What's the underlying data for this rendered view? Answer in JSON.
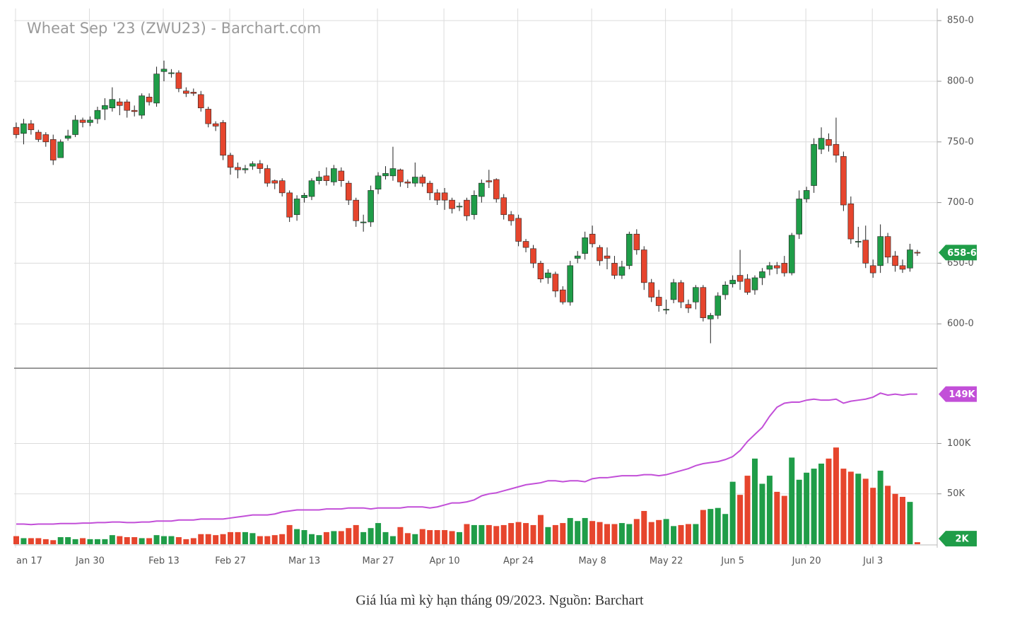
{
  "chart_data": [
    {
      "type": "candlestick",
      "title": "Wheat Sep '23 (ZWU23) - Barchart.com",
      "up_color": "#1f9d48",
      "down_color": "#e6452d",
      "open": [
        762,
        757,
        765,
        758,
        756,
        752,
        737,
        753,
        756,
        768,
        766,
        769,
        777,
        778,
        783,
        783,
        776,
        772,
        787,
        782,
        808,
        807,
        807,
        792,
        791,
        789,
        777,
        765,
        766,
        739,
        729,
        727,
        730,
        732,
        728,
        718,
        718,
        708,
        690,
        704,
        705,
        718,
        722,
        717,
        726,
        716,
        702,
        684,
        684,
        711,
        722,
        722,
        727,
        717,
        716,
        721,
        716,
        708,
        708,
        702,
        697,
        702,
        690,
        705,
        718,
        719,
        704,
        690,
        687,
        668,
        662,
        650,
        638,
        641,
        628,
        618,
        654,
        658,
        674,
        663,
        656,
        650,
        640,
        648,
        674,
        661,
        634,
        622,
        612,
        620,
        634,
        616,
        618,
        630,
        604,
        607,
        624,
        633,
        640,
        637,
        628,
        638,
        645,
        648,
        650,
        642,
        674,
        703,
        714,
        744,
        752,
        748,
        738,
        699,
        668,
        669,
        648,
        648,
        672,
        656,
        648,
        646,
        659
      ],
      "high": [
        766,
        769,
        768,
        760,
        758,
        756,
        752,
        760,
        772,
        770,
        771,
        779,
        786,
        795,
        786,
        785,
        780,
        790,
        790,
        812,
        817,
        810,
        809,
        795,
        794,
        792,
        779,
        767,
        768,
        741,
        733,
        731,
        734,
        735,
        731,
        719,
        720,
        710,
        706,
        708,
        720,
        726,
        729,
        731,
        729,
        718,
        704,
        690,
        714,
        725,
        730,
        746,
        728,
        719,
        733,
        723,
        718,
        711,
        712,
        704,
        700,
        704,
        710,
        719,
        727,
        720,
        707,
        693,
        690,
        670,
        665,
        652,
        645,
        643,
        631,
        652,
        660,
        676,
        681,
        665,
        663,
        656,
        652,
        676,
        678,
        664,
        637,
        628,
        620,
        637,
        636,
        620,
        632,
        632,
        609,
        626,
        635,
        640,
        661,
        641,
        640,
        646,
        651,
        651,
        656,
        675,
        710,
        713,
        753,
        762,
        757,
        770,
        742,
        705,
        680,
        681,
        653,
        682,
        675,
        660,
        653,
        666,
        661
      ],
      "low": [
        753,
        748,
        756,
        750,
        746,
        731,
        738,
        751,
        754,
        762,
        763,
        765,
        768,
        775,
        772,
        770,
        771,
        769,
        780,
        779,
        800,
        803,
        791,
        787,
        788,
        775,
        762,
        759,
        735,
        723,
        720,
        724,
        727,
        724,
        713,
        711,
        705,
        684,
        685,
        700,
        702,
        715,
        714,
        714,
        713,
        698,
        680,
        676,
        680,
        707,
        719,
        718,
        713,
        712,
        713,
        713,
        702,
        698,
        694,
        691,
        693,
        685,
        686,
        700,
        712,
        700,
        686,
        681,
        664,
        659,
        646,
        634,
        633,
        622,
        616,
        615,
        650,
        653,
        663,
        648,
        645,
        637,
        637,
        645,
        657,
        628,
        618,
        610,
        608,
        617,
        613,
        609,
        612,
        602,
        584,
        604,
        620,
        630,
        628,
        624,
        624,
        632,
        640,
        641,
        639,
        640,
        670,
        700,
        708,
        740,
        742,
        733,
        693,
        666,
        663,
        646,
        638,
        642,
        650,
        643,
        642,
        643,
        656
      ],
      "close": [
        756,
        765,
        760,
        752,
        750,
        735,
        750,
        755,
        768,
        766,
        768,
        776,
        780,
        785,
        780,
        776,
        775,
        788,
        783,
        806,
        810,
        807,
        794,
        790,
        790,
        778,
        765,
        763,
        739,
        729,
        727,
        728,
        732,
        728,
        716,
        716,
        708,
        688,
        703,
        706,
        718,
        721,
        718,
        728,
        718,
        702,
        685,
        684,
        710,
        722,
        724,
        728,
        717,
        716,
        721,
        716,
        708,
        702,
        702,
        695,
        697,
        689,
        706,
        716,
        717,
        703,
        690,
        685,
        668,
        663,
        650,
        637,
        642,
        627,
        618,
        648,
        656,
        671,
        666,
        652,
        654,
        640,
        647,
        674,
        661,
        634,
        622,
        615,
        612,
        634,
        618,
        613,
        630,
        605,
        607,
        623,
        632,
        636,
        635,
        626,
        638,
        643,
        648,
        646,
        642,
        673,
        703,
        710,
        748,
        753,
        747,
        739,
        698,
        670,
        668,
        650,
        642,
        672,
        655,
        648,
        645,
        661,
        658.75
      ],
      "ylim": [
        564,
        860
      ],
      "yticks": [
        {
          "value": 600,
          "label": "600-0"
        },
        {
          "value": 650,
          "label": "650-0"
        },
        {
          "value": 700,
          "label": "700-0"
        },
        {
          "value": 750,
          "label": "750-0"
        },
        {
          "value": 800,
          "label": "800-0"
        },
        {
          "value": 850,
          "label": "850-0"
        }
      ],
      "last": {
        "value": 658.75,
        "label": "658-6",
        "color": "#1f9d48"
      },
      "grid": true
    },
    {
      "type": "bar",
      "categories": [
        "an 17",
        null,
        null,
        null,
        null,
        null,
        null,
        null,
        null,
        null,
        "Jan 30",
        null,
        null,
        null,
        null,
        null,
        null,
        null,
        null,
        null,
        "Feb 13",
        null,
        null,
        null,
        null,
        null,
        null,
        null,
        null,
        "Feb 27",
        null,
        null,
        null,
        null,
        null,
        null,
        null,
        null,
        null,
        "Mar 13",
        null,
        null,
        null,
        null,
        null,
        null,
        null,
        null,
        null,
        "Mar 27",
        null,
        null,
        null,
        null,
        null,
        null,
        null,
        null,
        "Apr 10",
        null,
        null,
        null,
        null,
        null,
        null,
        null,
        null,
        null,
        "Apr 24",
        null,
        null,
        null,
        null,
        null,
        null,
        null,
        null,
        null,
        "May 8",
        null,
        null,
        null,
        null,
        null,
        null,
        null,
        null,
        null,
        "May 22",
        null,
        null,
        null,
        null,
        null,
        null,
        null,
        null,
        "Jun 5",
        null,
        null,
        null,
        null,
        null,
        null,
        null,
        null,
        null,
        "Jun 20",
        null,
        null,
        null,
        null,
        null,
        null,
        null,
        null,
        "Jul 3",
        null,
        null,
        null,
        null,
        null,
        null
      ],
      "series": [
        {
          "color_from": "price",
          "values": [
            8000,
            6000,
            6000,
            6000,
            5000,
            4000,
            7000,
            7000,
            5000,
            6000,
            5000,
            5000,
            5000,
            9000,
            8000,
            7000,
            7000,
            6000,
            6000,
            9000,
            8000,
            8000,
            7000,
            5000,
            6000,
            10000,
            10000,
            9000,
            10000,
            12000,
            12000,
            12000,
            11000,
            8000,
            8000,
            9000,
            10000,
            19000,
            15000,
            14000,
            10000,
            9000,
            12000,
            13000,
            13000,
            16000,
            19000,
            12000,
            16000,
            21000,
            12000,
            8000,
            17000,
            11000,
            10000,
            15000,
            14000,
            14000,
            14000,
            13000,
            12000,
            20000,
            19000,
            19000,
            19000,
            18000,
            19000,
            21000,
            22000,
            21000,
            19000,
            29000,
            17000,
            19000,
            21000,
            26000,
            23000,
            26000,
            23000,
            22000,
            20000,
            20000,
            21000,
            20000,
            25000,
            33000,
            22000,
            24000,
            25000,
            18000,
            19000,
            20000,
            20000,
            34000,
            35000,
            36000,
            30000,
            62000,
            49000,
            68000,
            85000,
            60000,
            68000,
            52000,
            48000,
            86000,
            64000,
            71000,
            75000,
            80000,
            85000,
            96000,
            75000,
            72000,
            70000,
            65000,
            56000,
            73000,
            58000,
            50000,
            47000,
            42000,
            2000
          ],
          "last": {
            "value": 2000,
            "label": "2K",
            "color": "#1f9d48"
          }
        },
        {
          "type": "line",
          "color": "#c24fd8",
          "values": [
            20000,
            20000,
            19500,
            20000,
            20000,
            20000,
            20500,
            20500,
            20500,
            21000,
            21000,
            21500,
            21500,
            22000,
            22000,
            21500,
            21500,
            22000,
            22000,
            23000,
            23000,
            23000,
            24000,
            24000,
            24000,
            25000,
            25000,
            25000,
            25000,
            26000,
            27000,
            28000,
            29000,
            29000,
            29000,
            30000,
            32000,
            33000,
            34000,
            34000,
            34000,
            34000,
            35000,
            35000,
            35000,
            36000,
            36000,
            36000,
            35000,
            36000,
            36000,
            36000,
            36000,
            37000,
            37000,
            37000,
            36000,
            37000,
            39000,
            41000,
            41000,
            42000,
            44000,
            48000,
            50000,
            51000,
            53000,
            55000,
            57000,
            59000,
            60000,
            61000,
            63000,
            63000,
            62000,
            63000,
            63000,
            62000,
            65000,
            66000,
            66000,
            67000,
            68000,
            68000,
            68000,
            69000,
            69000,
            68000,
            69000,
            71000,
            73000,
            75000,
            78000,
            80000,
            81000,
            82000,
            84000,
            87000,
            93000,
            102000,
            109000,
            116000,
            127000,
            136000,
            140000,
            141000,
            141000,
            143000,
            144000,
            143000,
            143000,
            144000,
            140000,
            142000,
            143000,
            144000,
            146000,
            150000,
            148000,
            149000,
            148000,
            149000,
            149000
          ],
          "last": {
            "value": 149000,
            "label": "149K",
            "color": "#c24fd8"
          }
        }
      ],
      "ylim": [
        0,
        174000
      ],
      "yticks": [
        {
          "value": 50000,
          "label": "50K"
        },
        {
          "value": 100000,
          "label": "100K"
        }
      ],
      "grid": true
    }
  ],
  "caption": "Giá lúa mì kỳ hạn tháng 09/2023. Nguồn: Barchart"
}
